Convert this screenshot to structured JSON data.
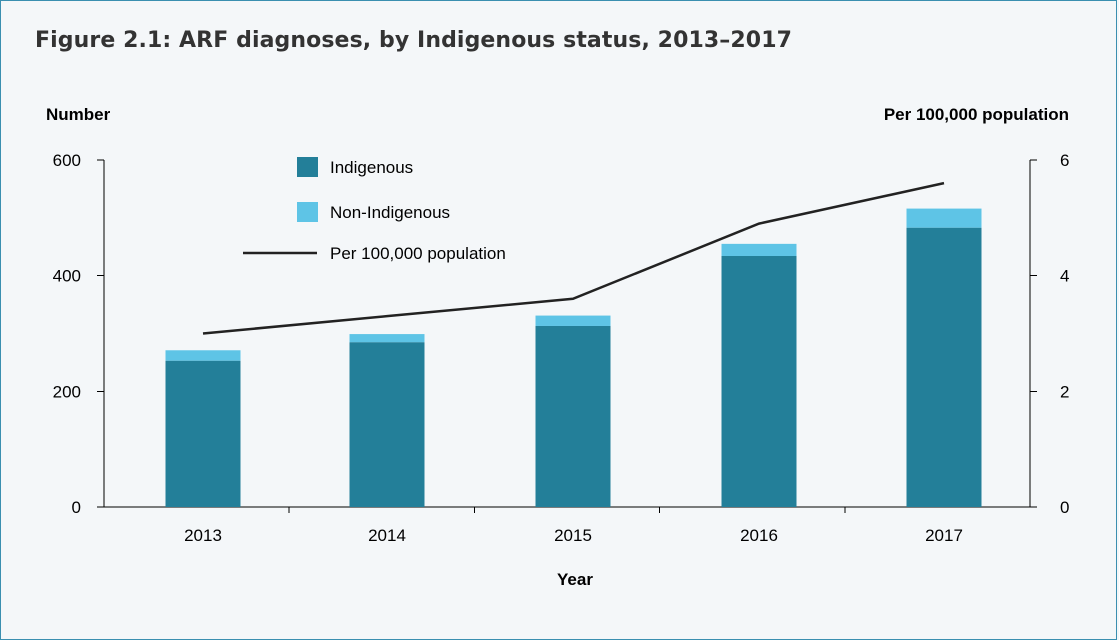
{
  "figure_title": "Figure 2.1: ARF diagnoses, by Indigenous status, 2013–2017",
  "colors": {
    "indigenous": "#237f99",
    "non_indigenous": "#5ec4e6",
    "line": "#222222",
    "border": "#3a8fb0"
  },
  "chart_data": {
    "type": "bar",
    "stacked": true,
    "title": "Figure 2.1: ARF diagnoses, by Indigenous status, 2013–2017",
    "xlabel": "Year",
    "ylabel": "Number",
    "y2label": "Per 100,000 population",
    "categories": [
      "2013",
      "2014",
      "2015",
      "2016",
      "2017"
    ],
    "ylim": [
      0,
      600
    ],
    "yticks": [
      "0",
      "200",
      "400",
      "600"
    ],
    "y2lim": [
      0,
      6
    ],
    "y2ticks": [
      "0",
      "2",
      "4",
      "6"
    ],
    "series": [
      {
        "name": "Indigenous",
        "type": "bar",
        "values": [
          253,
          285,
          313,
          434,
          483
        ]
      },
      {
        "name": "Non-Indigenous",
        "type": "bar",
        "values": [
          18,
          14,
          18,
          21,
          33
        ]
      },
      {
        "name": "Per 100,000 population",
        "type": "line",
        "axis": "right",
        "values": [
          3.0,
          3.3,
          3.6,
          4.9,
          5.6
        ]
      }
    ],
    "legend": "top-left"
  }
}
